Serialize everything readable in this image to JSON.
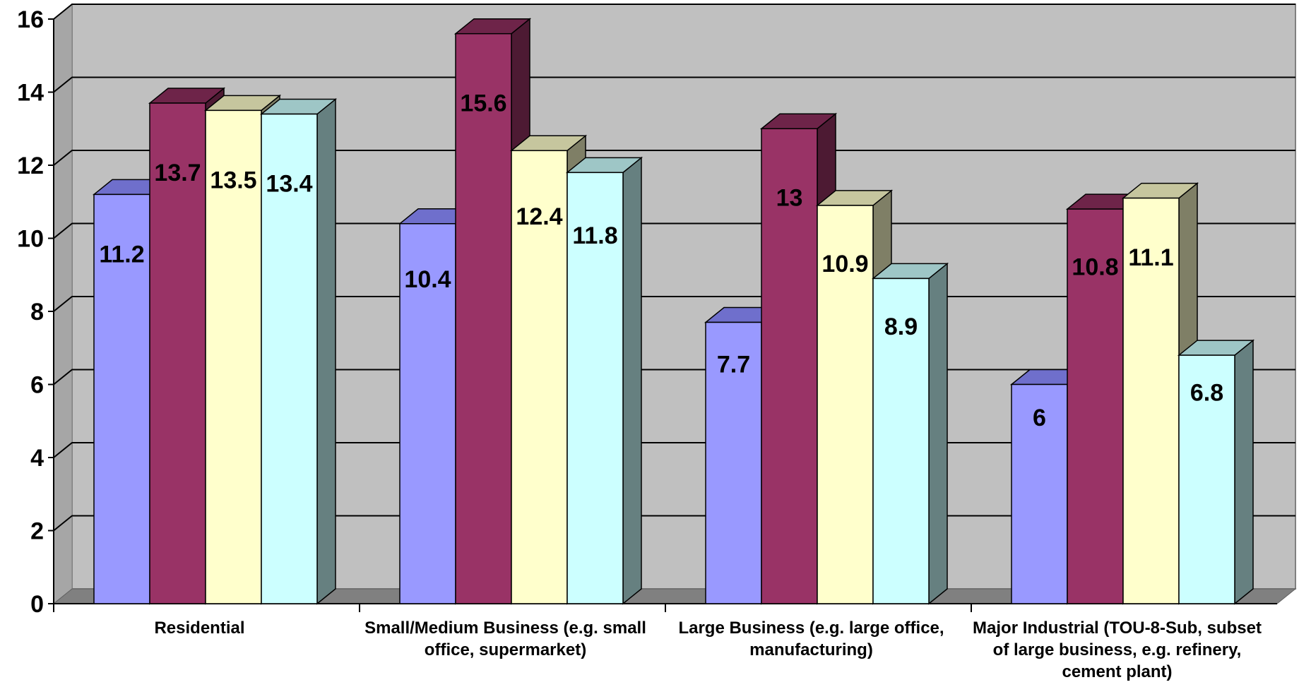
{
  "chart_data": {
    "type": "bar",
    "style": "3d-clustered-column",
    "categories": [
      [
        "Residential"
      ],
      [
        "Small/Medium Business (e.g. small",
        "office, supermarket)"
      ],
      [
        "Large Business (e.g. large office,",
        "manufacturing)"
      ],
      [
        "Major Industrial (TOU-8-Sub, subset",
        "of large business, e.g. refinery,",
        "cement plant)"
      ]
    ],
    "series": [
      {
        "values": [
          11.2,
          10.4,
          7.7,
          6
        ],
        "color": "#9999ff",
        "top_color": "#6f6fcc",
        "side_color": "#6f6fcc"
      },
      {
        "values": [
          13.7,
          15.6,
          13,
          10.8
        ],
        "color": "#993366",
        "top_color": "#6e2449",
        "side_color": "#4d1a33"
      },
      {
        "values": [
          13.5,
          12.4,
          10.9,
          11.1
        ],
        "color": "#ffffcc",
        "top_color": "#c6c69e",
        "side_color": "#7f7f66"
      },
      {
        "values": [
          13.4,
          11.8,
          8.9,
          6.8
        ],
        "color": "#ccffff",
        "top_color": "#9ec6c6",
        "side_color": "#668080"
      }
    ],
    "data_labels": [
      [
        "11.2",
        "10.4",
        "7.7",
        "6"
      ],
      [
        "13.7",
        "15.6",
        "13",
        "10.8"
      ],
      [
        "13.5",
        "12.4",
        "10.9",
        "11.1"
      ],
      [
        "13.4",
        "11.8",
        "8.9",
        "6.8"
      ]
    ],
    "y_ticks": [
      "0",
      "2",
      "4",
      "6",
      "8",
      "10",
      "12",
      "14",
      "16"
    ],
    "ylim": [
      0,
      16
    ],
    "title": "",
    "xlabel": "",
    "ylabel": "",
    "grid": true,
    "legend": false,
    "wall_color": "#c0c0c0",
    "floor_color": "#808080"
  }
}
